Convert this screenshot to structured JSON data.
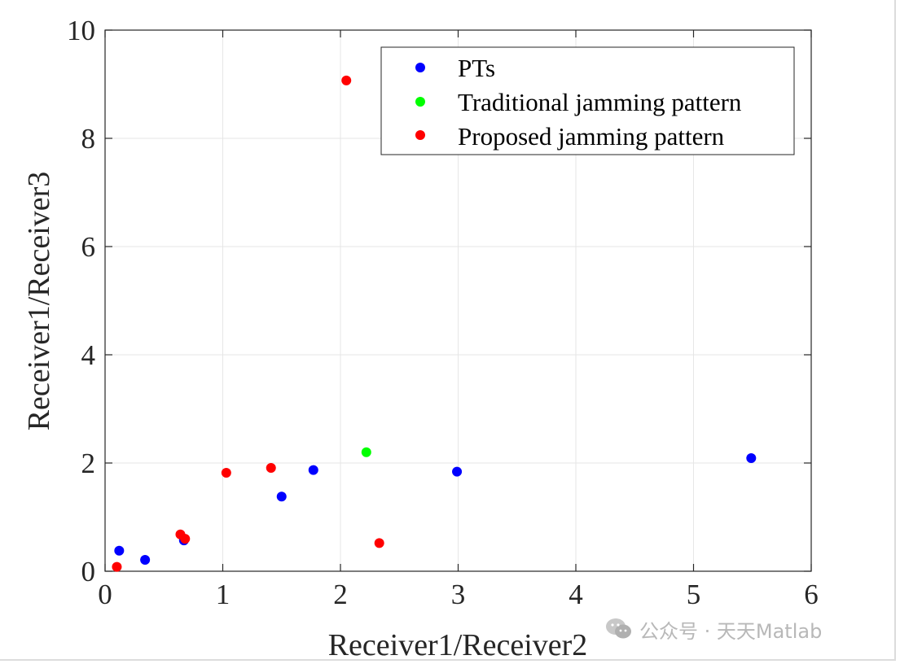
{
  "chart_data": {
    "type": "scatter",
    "xlabel": "Receiver1/Receiver2",
    "ylabel": "Receiver1/Receiver3",
    "xlim": [
      0,
      6
    ],
    "ylim": [
      0,
      10
    ],
    "xticks": [
      "0",
      "1",
      "2",
      "3",
      "4",
      "5",
      "6"
    ],
    "yticks": [
      "0",
      "2",
      "4",
      "6",
      "8",
      "10"
    ],
    "grid": true,
    "legend_position": "top-right",
    "series": [
      {
        "name": "PTs",
        "color": "#0000ff",
        "points": [
          [
            0.12,
            0.38
          ],
          [
            0.34,
            0.21
          ],
          [
            0.67,
            0.57
          ],
          [
            1.5,
            1.38
          ],
          [
            1.77,
            1.87
          ],
          [
            2.99,
            1.84
          ],
          [
            5.49,
            2.09
          ]
        ]
      },
      {
        "name": "Traditional jamming pattern",
        "color": "#00ff00",
        "points": [
          [
            2.22,
            2.2
          ]
        ]
      },
      {
        "name": "Proposed jamming pattern",
        "color": "#ff0000",
        "points": [
          [
            0.1,
            0.08
          ],
          [
            0.64,
            0.68
          ],
          [
            0.68,
            0.6
          ],
          [
            1.03,
            1.82
          ],
          [
            1.41,
            1.91
          ],
          [
            2.05,
            9.07
          ],
          [
            2.33,
            0.52
          ]
        ]
      }
    ]
  },
  "watermark": {
    "icon": "wechat-icon",
    "text": "公众号 · 天天Matlab"
  }
}
